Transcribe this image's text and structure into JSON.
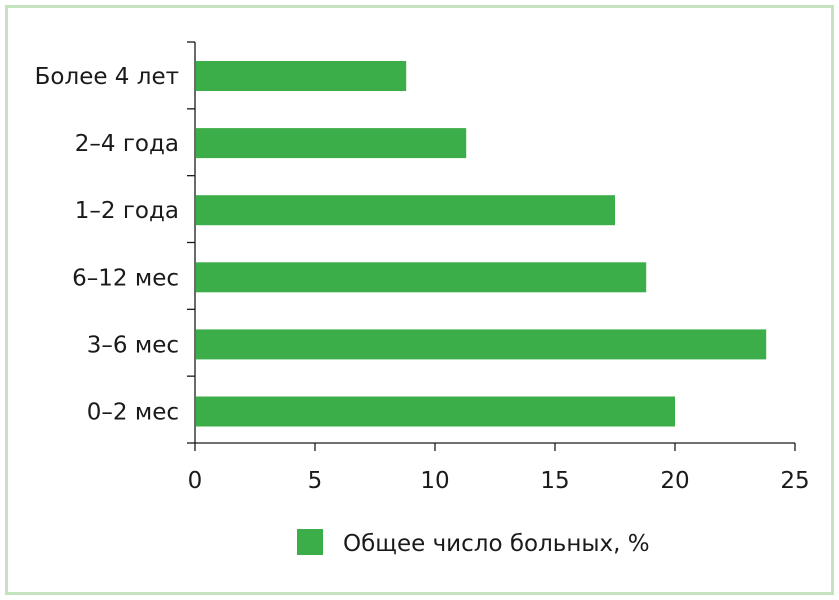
{
  "chart_data": {
    "type": "bar",
    "orientation": "horizontal",
    "categories": [
      "Более 4 лет",
      "2–4 года",
      "1–2 года",
      "6–12 мес",
      "3–6 мес",
      "0–2 мес"
    ],
    "series": [
      {
        "name": "Общее число больных, %",
        "values": [
          8.8,
          11.3,
          17.5,
          18.8,
          23.8,
          20.0
        ],
        "color": "#3cae49"
      }
    ],
    "xlim": [
      0,
      25
    ],
    "xticks": [
      0,
      5,
      10,
      15,
      20,
      25
    ],
    "grid": false,
    "legend_position": "bottom"
  },
  "colors": {
    "border": "#c5e3bf",
    "bar": "#3cae49",
    "axis": "#1a1a1a"
  }
}
